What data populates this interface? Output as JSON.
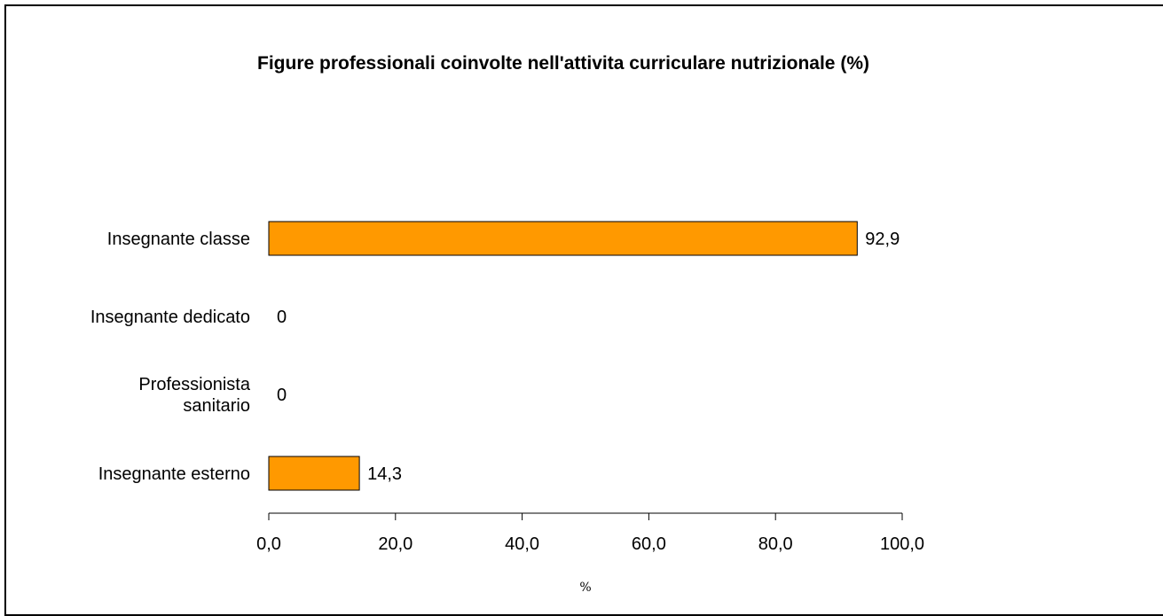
{
  "chart_data": {
    "type": "bar",
    "orientation": "horizontal",
    "title": "Figure professionali coinvolte nell'attivita curriculare nutrizionale (%)",
    "xlabel": "%",
    "ylabel": "",
    "xlim": [
      0,
      100
    ],
    "categories": [
      "Insegnante classe",
      "Insegnante dedicato",
      "Professionista sanitario",
      "Insegnante esterno"
    ],
    "category_lines": [
      [
        "Insegnante classe"
      ],
      [
        "Insegnante dedicato"
      ],
      [
        "Professionista",
        "sanitario"
      ],
      [
        "Insegnante esterno"
      ]
    ],
    "values": [
      92.9,
      0,
      0,
      14.3
    ],
    "value_labels": [
      "92,9",
      "0",
      "0",
      "14,3"
    ],
    "x_ticks": [
      0,
      20,
      40,
      60,
      80,
      100
    ],
    "x_tick_labels": [
      "0,0",
      "20,0",
      "40,0",
      "60,0",
      "80,0",
      "100,0"
    ],
    "bar_color": "#FF9900",
    "grid": false,
    "legend": "none"
  }
}
